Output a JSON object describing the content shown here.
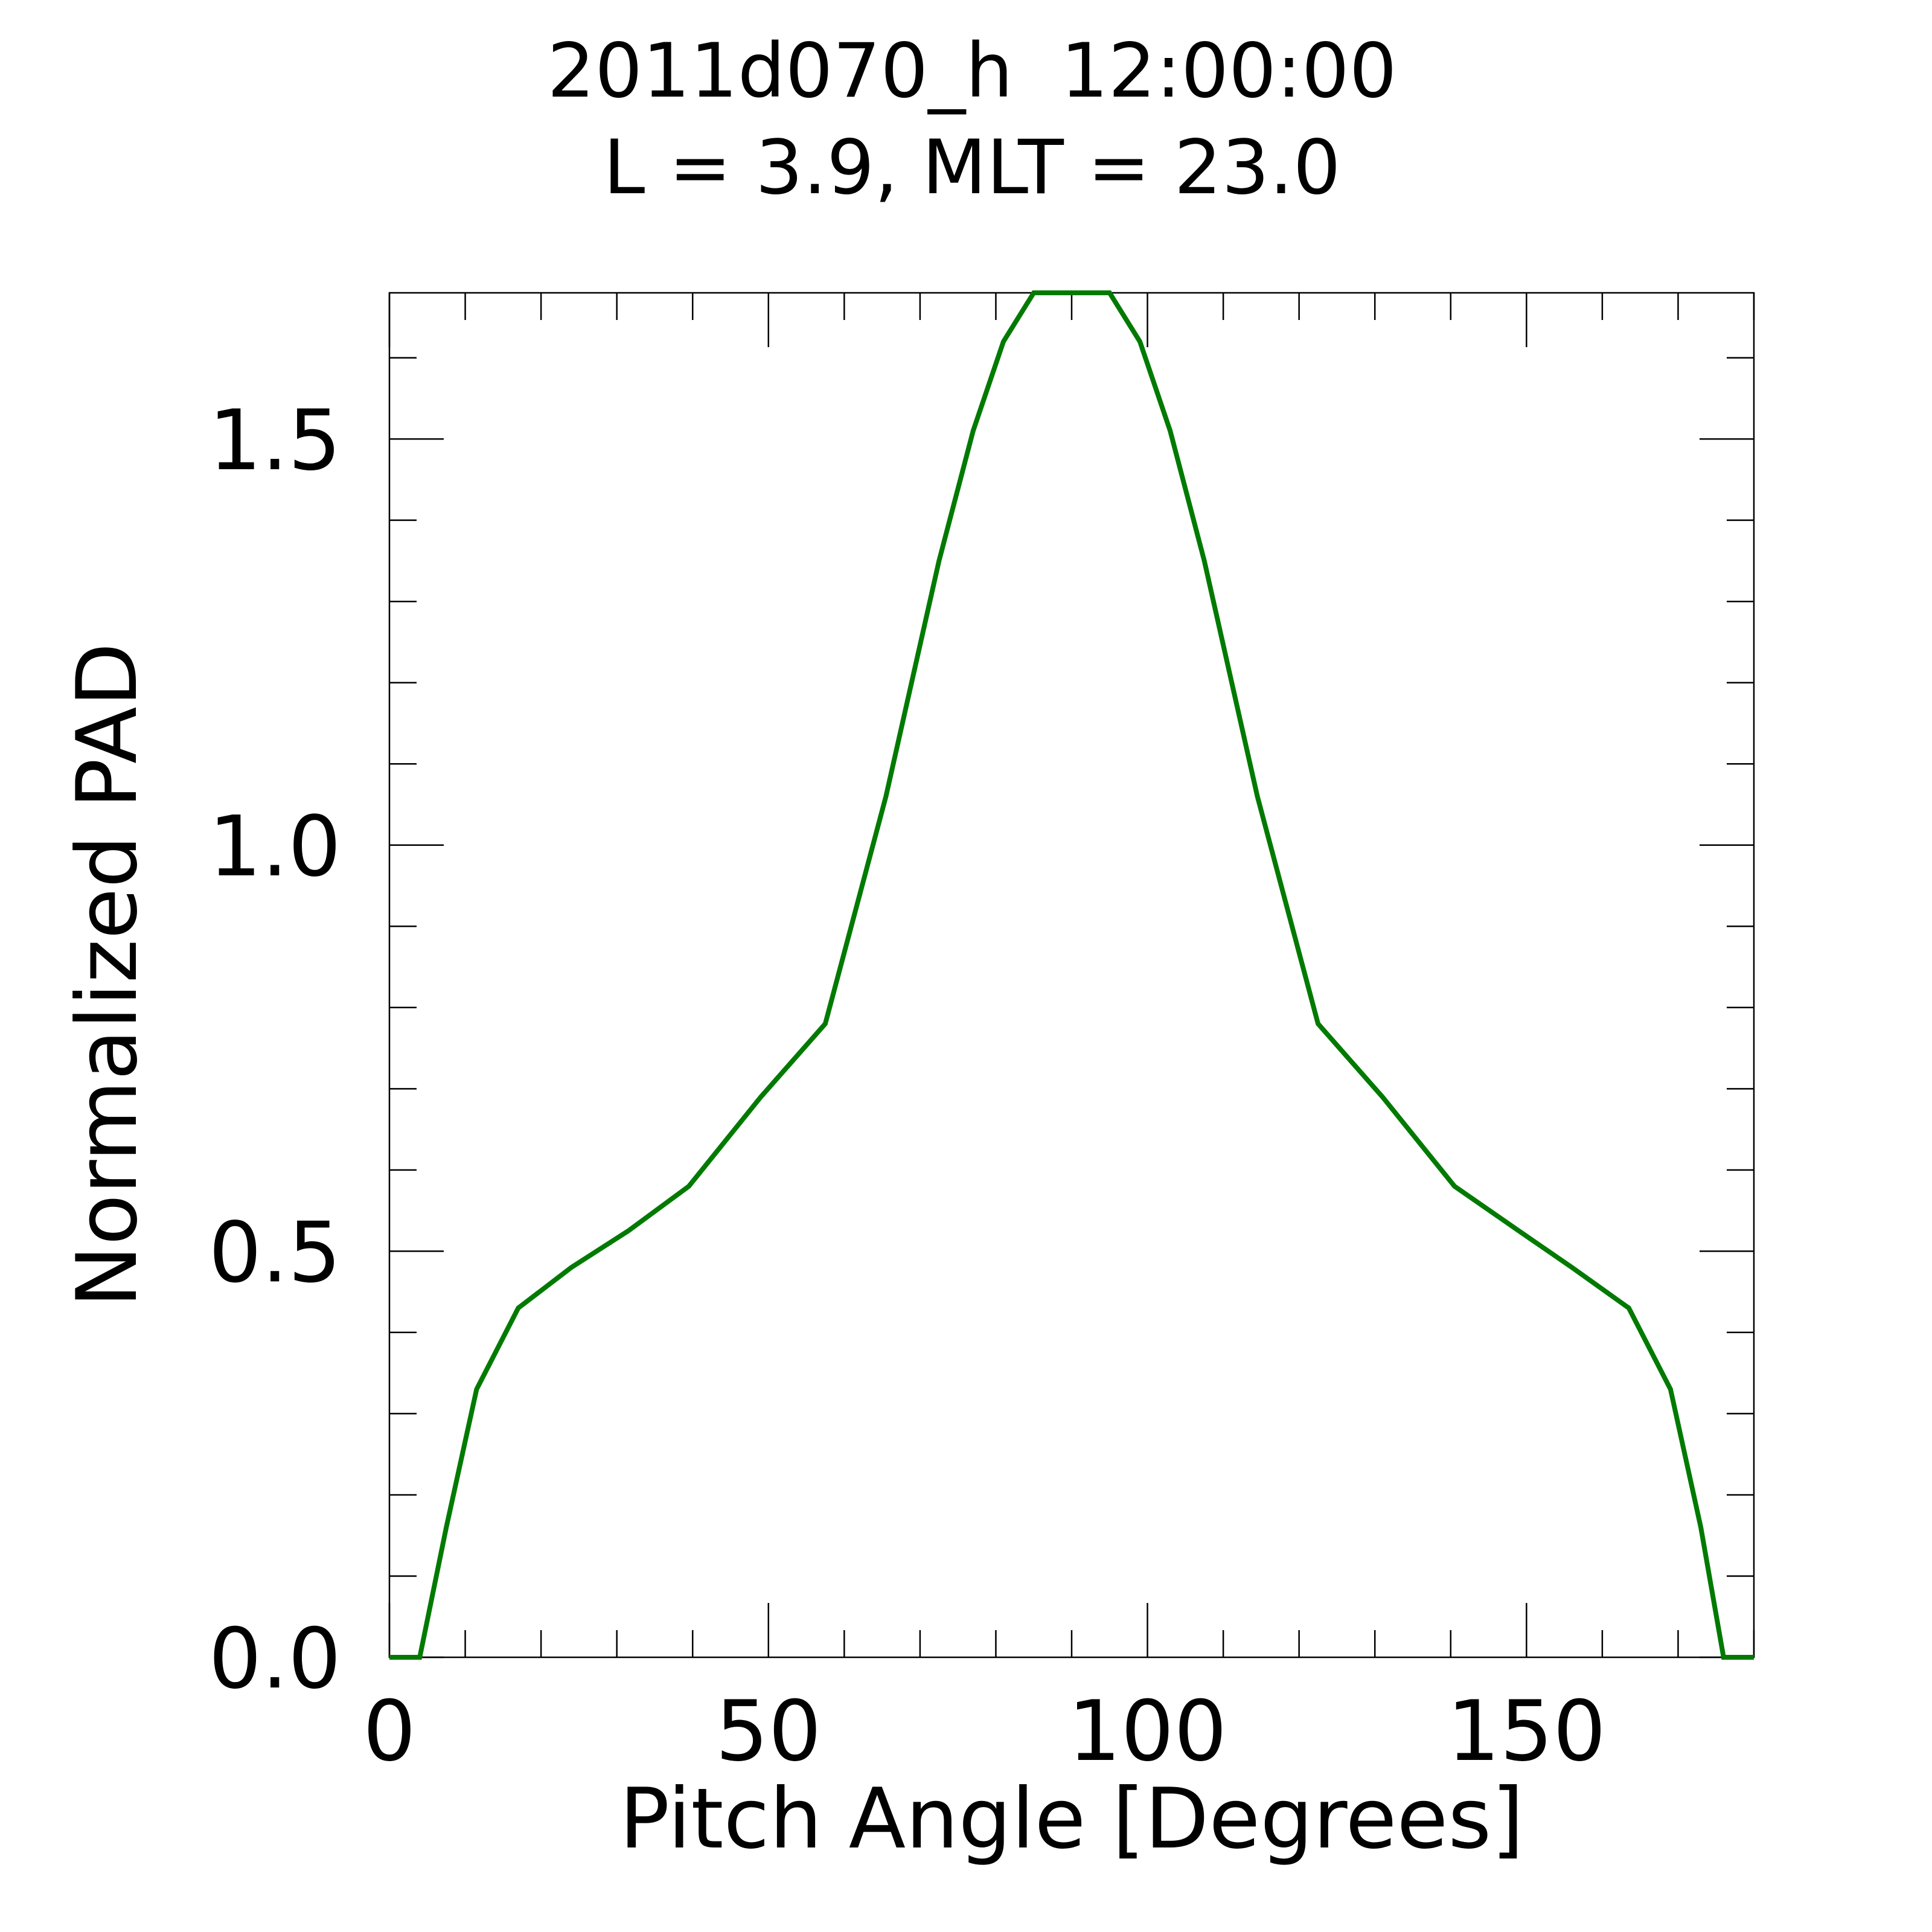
{
  "chart_data": {
    "type": "line",
    "title": "2011d070_h  12:00:00",
    "subtitle": "L = 3.9, MLT = 23.0",
    "xlabel": "Pitch Angle [Degrees]",
    "ylabel": "Normalized PAD",
    "xlim": [
      0,
      180
    ],
    "ylim": [
      0,
      1.68
    ],
    "x_ticks": [
      0,
      50,
      100,
      150
    ],
    "x_tick_labels": [
      "0",
      "50",
      "100",
      "150"
    ],
    "y_ticks": [
      0.0,
      0.5,
      1.0,
      1.5
    ],
    "y_tick_labels": [
      "0.0",
      "0.5",
      "1.0",
      "1.5"
    ],
    "x_minor_step": 10,
    "y_minor_step": 0.1,
    "grid": false,
    "line_color": "#007a00",
    "series": [
      {
        "x": [
          0,
          4,
          7.5,
          11.5,
          17,
          24,
          31.5,
          39.5,
          49,
          57.5,
          65.5,
          72.5,
          77,
          81,
          85,
          87,
          90,
          93,
          95,
          99,
          103,
          107.5,
          114.5,
          122.5,
          131,
          140.5,
          149,
          156,
          163.5,
          169,
          173,
          176,
          180
        ],
        "y": [
          0.0,
          0.0,
          0.16,
          0.33,
          0.43,
          0.48,
          0.525,
          0.58,
          0.69,
          0.78,
          1.06,
          1.35,
          1.51,
          1.62,
          1.68,
          1.685,
          1.685,
          1.685,
          1.68,
          1.62,
          1.51,
          1.35,
          1.06,
          0.78,
          0.69,
          0.58,
          0.525,
          0.48,
          0.43,
          0.33,
          0.16,
          0.0,
          0.0
        ]
      }
    ]
  }
}
